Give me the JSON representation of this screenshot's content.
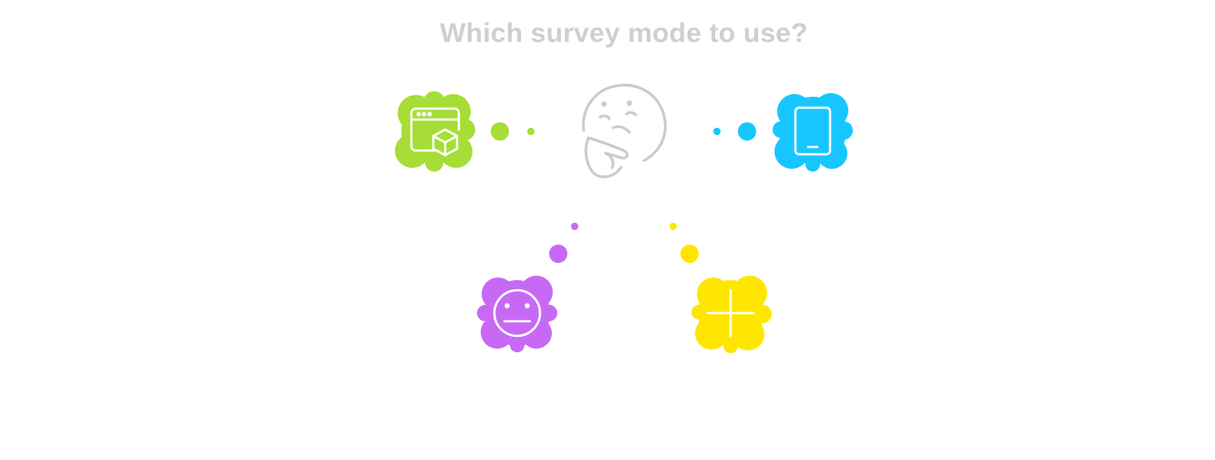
{
  "title": "Which survey mode to use?",
  "colors": {
    "title": "#cfcfcf",
    "center_face": "#cbcbcb",
    "web": "#a6dd36",
    "mobile": "#18c6ff",
    "neutral": "#c769f5",
    "add": "#ffe600",
    "icon_stroke": "#ffffff"
  },
  "nodes": [
    {
      "id": "web",
      "icon": "browser-box-icon",
      "color": "#a6dd36"
    },
    {
      "id": "mobile",
      "icon": "tablet-icon",
      "color": "#18c6ff"
    },
    {
      "id": "neutral",
      "icon": "neutral-face-icon",
      "color": "#c769f5"
    },
    {
      "id": "add",
      "icon": "plus-icon",
      "color": "#ffe600"
    }
  ],
  "center": {
    "icon": "thinking-face-icon",
    "color": "#cbcbcb"
  }
}
